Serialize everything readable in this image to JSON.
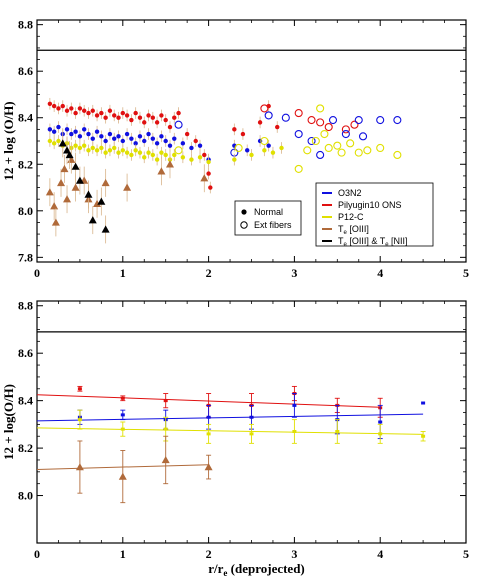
{
  "colors": {
    "o3n2": "#1010e0",
    "pilyugin": "#e01010",
    "p12c": "#e0e000",
    "te_oiii": "#b06a3a",
    "te_both": "#000000",
    "err_top": "#d8b48a",
    "solar_line": "#000000"
  },
  "chart_data": [
    {
      "type": "scatter",
      "xlim": [
        0,
        5
      ],
      "ylim": [
        7.78,
        8.82
      ],
      "x_ticks": [
        0,
        1,
        2,
        3,
        4,
        5
      ],
      "y_ticks": [
        7.8,
        8.0,
        8.2,
        8.4,
        8.6,
        8.8
      ],
      "x_tick_labels": [
        "0",
        "1",
        "2",
        "3",
        "4",
        "5"
      ],
      "y_tick_labels": [
        "7.8",
        "8.0",
        "8.2",
        "8.4",
        "8.6",
        "8.8"
      ],
      "ylabel": "12 + log (O/H)",
      "xlabel": "",
      "solar_value": 8.69,
      "legend_series": [
        {
          "key": "o3n2",
          "label": "O3N2"
        },
        {
          "key": "pilyugin",
          "label": "Pilyugin10 ONS"
        },
        {
          "key": "p12c",
          "label": "P12-C"
        },
        {
          "key": "te_oiii",
          "label": "T",
          "label_sub": "e",
          "label_post": " [OIII]"
        },
        {
          "key": "te_both",
          "label": "T",
          "label_sub": "e",
          "label_post": " [OIII] & T",
          "label_sub2": "e",
          "label_post2": " [NII]"
        }
      ],
      "marker_legend": [
        {
          "marker": "filled-circle",
          "label": "Normal"
        },
        {
          "marker": "open-circle",
          "label": "Ext fibers"
        }
      ],
      "series": [
        {
          "key": "pilyugin",
          "marker": "filled-circle",
          "points": [
            [
              0.15,
              8.46
            ],
            [
              0.2,
              8.45
            ],
            [
              0.25,
              8.44
            ],
            [
              0.3,
              8.45
            ],
            [
              0.35,
              8.43
            ],
            [
              0.4,
              8.44
            ],
            [
              0.45,
              8.42
            ],
            [
              0.5,
              8.44
            ],
            [
              0.55,
              8.43
            ],
            [
              0.6,
              8.42
            ],
            [
              0.65,
              8.43
            ],
            [
              0.7,
              8.41
            ],
            [
              0.75,
              8.42
            ],
            [
              0.8,
              8.4
            ],
            [
              0.85,
              8.43
            ],
            [
              0.9,
              8.41
            ],
            [
              0.95,
              8.4
            ],
            [
              1.0,
              8.42
            ],
            [
              1.05,
              8.41
            ],
            [
              1.1,
              8.39
            ],
            [
              1.15,
              8.42
            ],
            [
              1.2,
              8.4
            ],
            [
              1.25,
              8.38
            ],
            [
              1.3,
              8.41
            ],
            [
              1.35,
              8.4
            ],
            [
              1.4,
              8.38
            ],
            [
              1.45,
              8.41
            ],
            [
              1.5,
              8.39
            ],
            [
              1.55,
              8.36
            ],
            [
              1.6,
              8.4
            ],
            [
              1.65,
              8.42
            ],
            [
              1.75,
              8.33
            ],
            [
              1.85,
              8.3
            ],
            [
              1.95,
              8.24
            ],
            [
              2.0,
              8.16
            ],
            [
              2.02,
              8.1
            ],
            [
              2.3,
              8.35
            ],
            [
              2.4,
              8.33
            ],
            [
              2.6,
              8.38
            ],
            [
              2.7,
              8.45
            ],
            [
              2.8,
              8.36
            ]
          ]
        },
        {
          "key": "pilyugin",
          "marker": "open-circle",
          "points": [
            [
              2.65,
              8.44
            ],
            [
              3.05,
              8.42
            ],
            [
              3.2,
              8.39
            ],
            [
              3.3,
              8.38
            ],
            [
              3.4,
              8.36
            ],
            [
              3.6,
              8.35
            ],
            [
              3.7,
              8.37
            ]
          ]
        },
        {
          "key": "o3n2",
          "marker": "filled-circle",
          "points": [
            [
              0.15,
              8.35
            ],
            [
              0.2,
              8.34
            ],
            [
              0.25,
              8.36
            ],
            [
              0.3,
              8.33
            ],
            [
              0.35,
              8.35
            ],
            [
              0.4,
              8.33
            ],
            [
              0.45,
              8.34
            ],
            [
              0.5,
              8.32
            ],
            [
              0.55,
              8.35
            ],
            [
              0.6,
              8.33
            ],
            [
              0.65,
              8.31
            ],
            [
              0.7,
              8.34
            ],
            [
              0.75,
              8.32
            ],
            [
              0.8,
              8.3
            ],
            [
              0.85,
              8.33
            ],
            [
              0.9,
              8.31
            ],
            [
              0.95,
              8.32
            ],
            [
              1.0,
              8.3
            ],
            [
              1.05,
              8.33
            ],
            [
              1.1,
              8.31
            ],
            [
              1.15,
              8.29
            ],
            [
              1.2,
              8.32
            ],
            [
              1.25,
              8.3
            ],
            [
              1.3,
              8.33
            ],
            [
              1.35,
              8.31
            ],
            [
              1.4,
              8.29
            ],
            [
              1.45,
              8.32
            ],
            [
              1.5,
              8.3
            ],
            [
              1.55,
              8.28
            ],
            [
              1.6,
              8.31
            ],
            [
              1.7,
              8.29
            ],
            [
              1.8,
              8.27
            ],
            [
              1.9,
              8.28
            ],
            [
              2.0,
              8.22
            ],
            [
              2.3,
              8.28
            ],
            [
              2.45,
              8.26
            ],
            [
              2.6,
              8.3
            ],
            [
              2.7,
              8.28
            ]
          ]
        },
        {
          "key": "o3n2",
          "marker": "open-circle",
          "points": [
            [
              1.65,
              8.37
            ],
            [
              2.3,
              8.25
            ],
            [
              2.7,
              8.41
            ],
            [
              2.9,
              8.4
            ],
            [
              3.05,
              8.33
            ],
            [
              3.2,
              8.3
            ],
            [
              3.3,
              8.24
            ],
            [
              3.45,
              8.39
            ],
            [
              3.6,
              8.33
            ],
            [
              3.75,
              8.39
            ],
            [
              3.8,
              8.32
            ],
            [
              4.0,
              8.39
            ],
            [
              4.2,
              8.39
            ]
          ]
        },
        {
          "key": "p12c",
          "marker": "filled-circle",
          "points": [
            [
              0.15,
              8.3
            ],
            [
              0.2,
              8.29
            ],
            [
              0.25,
              8.3
            ],
            [
              0.3,
              8.28
            ],
            [
              0.35,
              8.29
            ],
            [
              0.4,
              8.27
            ],
            [
              0.45,
              8.28
            ],
            [
              0.5,
              8.27
            ],
            [
              0.55,
              8.28
            ],
            [
              0.6,
              8.26
            ],
            [
              0.65,
              8.27
            ],
            [
              0.7,
              8.26
            ],
            [
              0.75,
              8.27
            ],
            [
              0.8,
              8.25
            ],
            [
              0.85,
              8.26
            ],
            [
              0.9,
              8.27
            ],
            [
              0.95,
              8.25
            ],
            [
              1.0,
              8.26
            ],
            [
              1.05,
              8.25
            ],
            [
              1.1,
              8.24
            ],
            [
              1.15,
              8.26
            ],
            [
              1.2,
              8.25
            ],
            [
              1.25,
              8.23
            ],
            [
              1.3,
              8.25
            ],
            [
              1.35,
              8.24
            ],
            [
              1.4,
              8.22
            ],
            [
              1.45,
              8.25
            ],
            [
              1.5,
              8.24
            ],
            [
              1.55,
              8.22
            ],
            [
              1.6,
              8.24
            ],
            [
              1.7,
              8.23
            ],
            [
              1.8,
              8.22
            ],
            [
              1.9,
              8.23
            ],
            [
              2.0,
              8.21
            ],
            [
              2.3,
              8.22
            ],
            [
              2.5,
              8.24
            ],
            [
              2.65,
              8.26
            ],
            [
              2.75,
              8.25
            ],
            [
              2.85,
              8.27
            ]
          ]
        },
        {
          "key": "p12c",
          "marker": "open-circle",
          "points": [
            [
              1.65,
              8.26
            ],
            [
              2.35,
              8.27
            ],
            [
              2.65,
              8.3
            ],
            [
              3.05,
              8.18
            ],
            [
              3.15,
              8.26
            ],
            [
              3.25,
              8.3
            ],
            [
              3.35,
              8.33
            ],
            [
              3.4,
              8.27
            ],
            [
              3.5,
              8.28
            ],
            [
              3.55,
              8.25
            ],
            [
              3.65,
              8.29
            ],
            [
              3.75,
              8.25
            ],
            [
              3.85,
              8.26
            ],
            [
              4.0,
              8.27
            ],
            [
              4.2,
              8.24
            ],
            [
              3.3,
              8.44
            ]
          ]
        },
        {
          "key": "te_oiii",
          "marker": "triangle",
          "points": [
            [
              0.15,
              8.08
            ],
            [
              0.2,
              8.02
            ],
            [
              0.22,
              7.95
            ],
            [
              0.28,
              8.12
            ],
            [
              0.32,
              8.18
            ],
            [
              0.35,
              8.05
            ],
            [
              0.4,
              8.22
            ],
            [
              0.45,
              8.1
            ],
            [
              0.55,
              8.13
            ],
            [
              0.6,
              8.05
            ],
            [
              0.7,
              8.03
            ],
            [
              0.8,
              8.12
            ],
            [
              1.05,
              8.1
            ],
            [
              1.45,
              8.17
            ],
            [
              1.55,
              8.2
            ],
            [
              1.95,
              8.14
            ]
          ]
        },
        {
          "key": "te_both",
          "marker": "triangle",
          "points": [
            [
              0.3,
              8.29
            ],
            [
              0.35,
              8.26
            ],
            [
              0.38,
              8.24
            ],
            [
              0.45,
              8.19
            ],
            [
              0.5,
              8.13
            ],
            [
              0.6,
              8.07
            ],
            [
              0.65,
              7.96
            ],
            [
              0.75,
              8.04
            ],
            [
              0.8,
              7.92
            ]
          ]
        }
      ]
    },
    {
      "type": "scatter",
      "xlim": [
        0,
        5
      ],
      "ylim": [
        7.8,
        8.82
      ],
      "x_ticks": [
        0,
        1,
        2,
        3,
        4,
        5
      ],
      "y_ticks": [
        8.0,
        8.2,
        8.4,
        8.6,
        8.8
      ],
      "x_tick_labels": [
        "0",
        "1",
        "2",
        "3",
        "4",
        "5"
      ],
      "y_tick_labels": [
        "8.0",
        "8.2",
        "8.4",
        "8.6",
        "8.8"
      ],
      "ylabel": "12 + log(O/H)",
      "xlabel": "r/r",
      "xlabel_sub": "e",
      "xlabel_post": " (deprojected)",
      "solar_value": 8.69,
      "series": [
        {
          "key": "pilyugin",
          "x": [
            0.5,
            1.0,
            1.5,
            2.0,
            2.5,
            3.0,
            3.5,
            4.0
          ],
          "y": [
            8.45,
            8.41,
            8.4,
            8.38,
            8.38,
            8.43,
            8.38,
            8.37
          ],
          "err": [
            0.01,
            0.01,
            0.03,
            0.05,
            0.05,
            0.03,
            0.03,
            0.04
          ],
          "fit": [
            [
              0.0,
              8.425
            ],
            [
              4.0,
              8.372
            ]
          ]
        },
        {
          "key": "o3n2",
          "x": [
            0.5,
            1.0,
            1.5,
            2.0,
            2.5,
            3.0,
            3.5,
            4.0,
            4.5
          ],
          "y": [
            8.33,
            8.34,
            8.32,
            8.33,
            8.33,
            8.38,
            8.32,
            8.31,
            8.39
          ],
          "err": [
            0.03,
            0.02,
            0.04,
            0.05,
            0.05,
            0.05,
            0.06,
            0.07,
            0.0
          ],
          "fit": [
            [
              0.0,
              8.315
            ],
            [
              4.5,
              8.343
            ]
          ]
        },
        {
          "key": "p12c",
          "x": [
            0.5,
            1.0,
            1.5,
            2.0,
            2.5,
            3.0,
            3.5,
            4.0,
            4.5
          ],
          "y": [
            8.32,
            8.28,
            8.28,
            8.26,
            8.26,
            8.27,
            8.27,
            8.26,
            8.25
          ],
          "err": [
            0.04,
            0.03,
            0.05,
            0.04,
            0.04,
            0.05,
            0.05,
            0.04,
            0.02
          ],
          "fit": [
            [
              0.0,
              8.285
            ],
            [
              4.5,
              8.258
            ]
          ]
        },
        {
          "key": "te_oiii",
          "x": [
            0.5,
            1.0,
            1.5,
            2.0
          ],
          "y": [
            8.12,
            8.08,
            8.15,
            8.12
          ],
          "err": [
            0.11,
            0.11,
            0.1,
            0.05
          ],
          "fit": [
            [
              0.0,
              8.11
            ],
            [
              2.0,
              8.13
            ]
          ]
        }
      ]
    }
  ]
}
